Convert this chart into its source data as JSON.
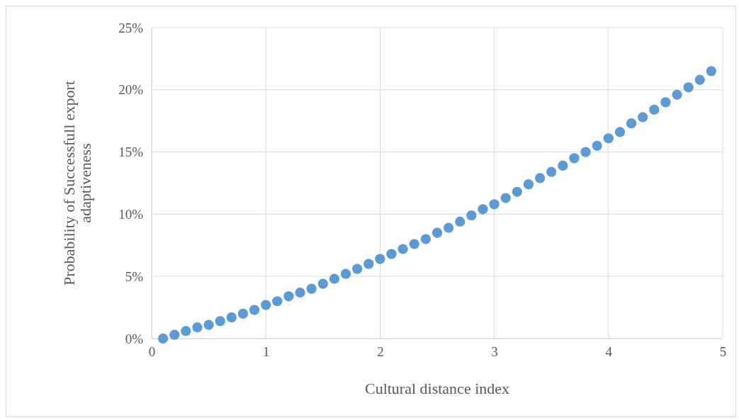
{
  "chart_data": {
    "type": "scatter",
    "xlabel": "Cultural distance index",
    "ylabel": "Probability of Successfull export adaptiveness",
    "x": [
      0.1,
      0.2,
      0.3,
      0.4,
      0.5,
      0.6,
      0.7,
      0.8,
      0.9,
      1.0,
      1.1,
      1.2,
      1.3,
      1.4,
      1.5,
      1.6,
      1.7,
      1.8,
      1.9,
      2.0,
      2.1,
      2.2,
      2.3,
      2.4,
      2.5,
      2.6,
      2.7,
      2.8,
      2.9,
      3.0,
      3.1,
      3.2,
      3.3,
      3.4,
      3.5,
      3.6,
      3.7,
      3.8,
      3.9,
      4.0,
      4.1,
      4.2,
      4.3,
      4.4,
      4.5,
      4.6,
      4.7,
      4.8,
      4.9
    ],
    "series": [
      {
        "color": "#5b9bd5",
        "values": [
          0,
          0.3,
          0.6,
          0.9,
          1.1,
          1.4,
          1.7,
          2.0,
          2.3,
          2.7,
          3.0,
          3.4,
          3.7,
          4.0,
          4.4,
          4.8,
          5.2,
          5.6,
          6.0,
          6.4,
          6.8,
          7.2,
          7.6,
          8.0,
          8.5,
          8.9,
          9.4,
          9.9,
          10.4,
          10.8,
          11.3,
          11.8,
          12.4,
          12.9,
          13.4,
          13.9,
          14.5,
          15.0,
          15.5,
          16.1,
          16.6,
          17.3,
          17.8,
          18.4,
          19.0,
          19.6,
          20.2,
          20.8,
          21.5
        ]
      }
    ],
    "xlim": [
      0,
      5
    ],
    "xticks": [
      0,
      1,
      2,
      3,
      4,
      5
    ],
    "ylim": [
      0,
      25
    ],
    "yticks": [
      {
        "value": 0,
        "label": "0%"
      },
      {
        "value": 5,
        "label": "5%"
      },
      {
        "value": 10,
        "label": "10%"
      },
      {
        "value": 15,
        "label": "15%"
      },
      {
        "value": 20,
        "label": "20%"
      },
      {
        "value": 25,
        "label": "25%"
      }
    ],
    "grid": true,
    "marker": "circle"
  }
}
